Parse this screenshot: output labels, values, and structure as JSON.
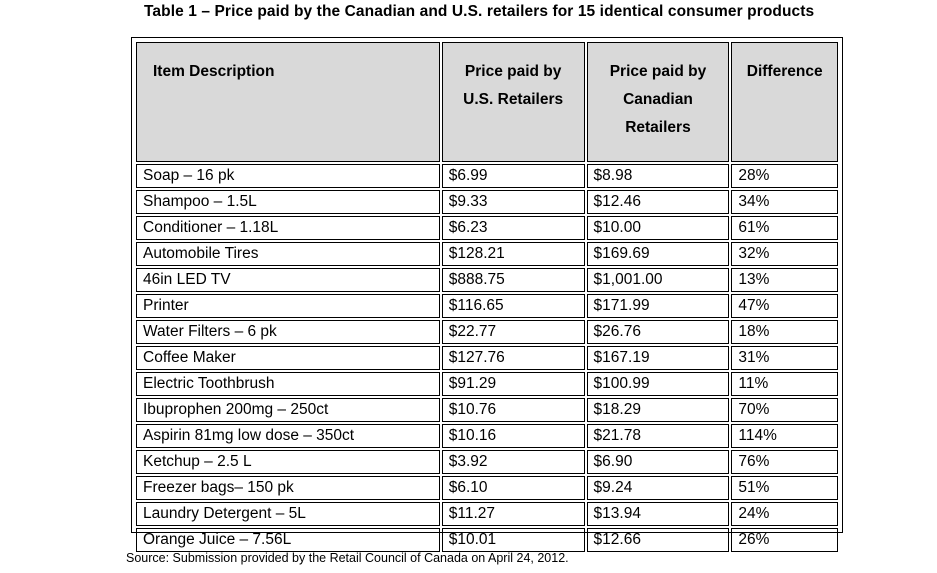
{
  "title": "Table 1 – Price paid by the Canadian and U.S. retailers for 15 identical consumer products",
  "headers": {
    "item": "Item Description",
    "us": "Price paid by U.S. Retailers",
    "ca": "Price paid by Canadian Retailers",
    "diff": "Difference"
  },
  "rows": [
    {
      "item": "Soap – 16 pk",
      "us": "$6.99",
      "ca": "$8.98",
      "diff": "28%"
    },
    {
      "item": "Shampoo – 1.5L",
      "us": "$9.33",
      "ca": "$12.46",
      "diff": "34%"
    },
    {
      "item": "Conditioner – 1.18L",
      "us": "$6.23",
      "ca": "$10.00",
      "diff": "61%"
    },
    {
      "item": "Automobile Tires",
      "us": "$128.21",
      "ca": "$169.69",
      "diff": "32%"
    },
    {
      "item": "46in LED TV",
      "us": "$888.75",
      "ca": "$1,001.00",
      "diff": "13%"
    },
    {
      "item": "Printer",
      "us": "$116.65",
      "ca": "$171.99",
      "diff": "47%"
    },
    {
      "item": "Water Filters – 6 pk",
      "us": "$22.77",
      "ca": "$26.76",
      "diff": "18%"
    },
    {
      "item": "Coffee Maker",
      "us": "$127.76",
      "ca": "$167.19",
      "diff": "31%"
    },
    {
      "item": "Electric Toothbrush",
      "us": "$91.29",
      "ca": "$100.99",
      "diff": "11%"
    },
    {
      "item": "Ibuprophen 200mg – 250ct",
      "us": "$10.76",
      "ca": "$18.29",
      "diff": "70%"
    },
    {
      "item": "Aspirin 81mg low dose – 350ct",
      "us": "$10.16",
      "ca": "$21.78",
      "diff": "114%"
    },
    {
      "item": "Ketchup – 2.5 L",
      "us": "$3.92",
      "ca": "$6.90",
      "diff": "76%"
    },
    {
      "item": "Freezer bags– 150 pk",
      "us": "$6.10",
      "ca": "$9.24",
      "diff": "51%"
    },
    {
      "item": "Laundry Detergent – 5L",
      "us": "$11.27",
      "ca": "$13.94",
      "diff": "24%"
    },
    {
      "item": "Orange Juice – 7.56L",
      "us": "$10.01",
      "ca": "$12.66",
      "diff": "26%"
    }
  ],
  "source": "Source: Submission provided by the Retail Council of Canada on April 24, 2012."
}
